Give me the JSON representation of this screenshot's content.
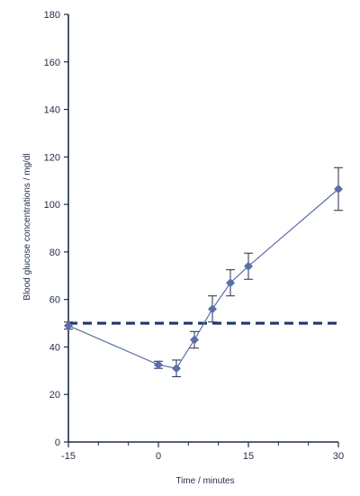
{
  "chart_data": {
    "type": "line",
    "xlabel": "Time / minutes",
    "ylabel": "Blood glucose concentrations / mg/dl",
    "xlim": [
      -15,
      30
    ],
    "ylim": [
      0,
      180
    ],
    "x_ticks_major": [
      -15,
      0,
      15,
      30
    ],
    "x_ticks_minor": [
      -10,
      -5,
      5,
      10,
      20,
      25
    ],
    "y_ticks": [
      0,
      20,
      40,
      60,
      80,
      100,
      120,
      140,
      160,
      180
    ],
    "grid": false,
    "series": [
      {
        "x": [
          -15,
          0,
          3,
          6,
          9,
          12,
          15,
          30
        ],
        "y": [
          49,
          32.5,
          31,
          43,
          56,
          67,
          74,
          106.5
        ],
        "error": [
          1.5,
          1.5,
          3.5,
          3.5,
          5.5,
          5.5,
          5.5,
          9
        ],
        "marker": "diamond",
        "color": "#5b6ea6"
      }
    ],
    "reference_line": {
      "y": 50,
      "style": "dashed",
      "color": "#1e3a6e"
    },
    "axis_color": "#1f2d4a"
  }
}
